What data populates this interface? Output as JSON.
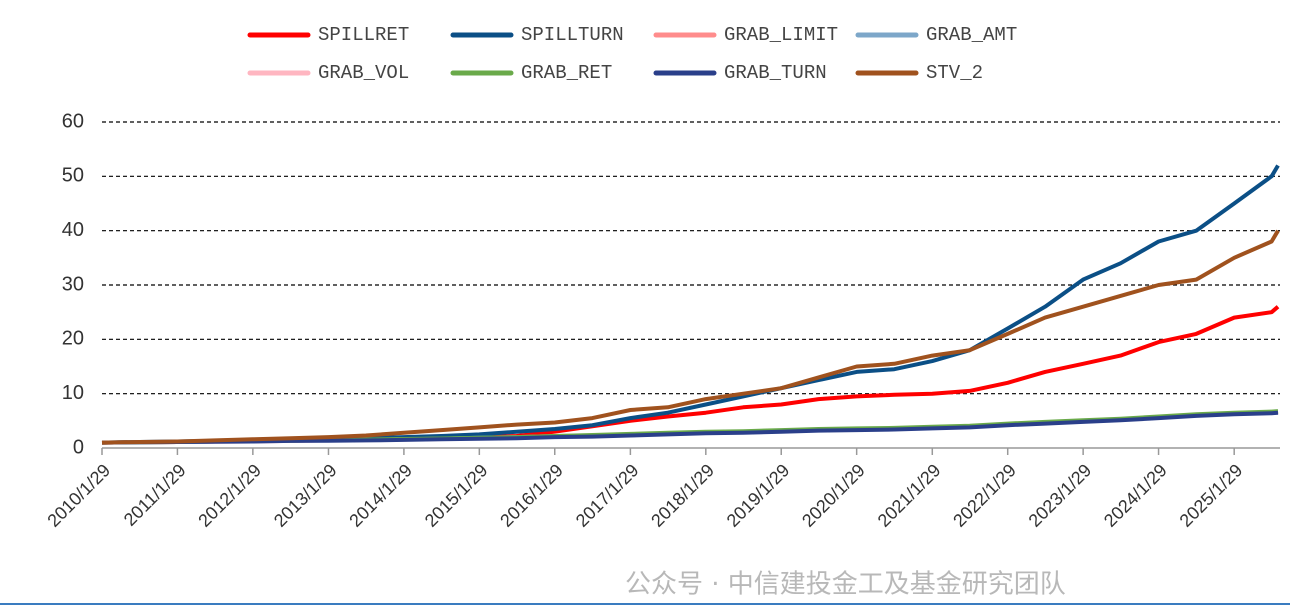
{
  "chart_data": {
    "type": "line",
    "watermark": "公众号 · 中信建投金工及基金研究团队",
    "x": [
      "2010/1/29",
      "2010/7/29",
      "2011/1/29",
      "2011/7/29",
      "2012/1/29",
      "2012/7/29",
      "2013/1/29",
      "2013/7/29",
      "2014/1/29",
      "2014/7/29",
      "2015/1/29",
      "2015/7/29",
      "2016/1/29",
      "2016/7/29",
      "2017/1/29",
      "2017/7/29",
      "2018/1/29",
      "2018/7/29",
      "2019/1/29",
      "2019/7/29",
      "2020/1/29",
      "2020/7/29",
      "2021/1/29",
      "2021/7/29",
      "2022/1/29",
      "2022/7/29",
      "2023/1/29",
      "2023/7/29",
      "2024/1/29",
      "2024/7/29",
      "2025/1/29",
      "2025/7/29",
      "2025/8/29"
    ],
    "xlim": [
      "2010/1/29",
      "2025/8/29"
    ],
    "xticks": [
      "2010/1/29",
      "2011/1/29",
      "2012/1/29",
      "2013/1/29",
      "2014/1/29",
      "2015/1/29",
      "2016/1/29",
      "2017/1/29",
      "2018/1/29",
      "2019/1/29",
      "2020/1/29",
      "2021/1/29",
      "2022/1/29",
      "2023/1/29",
      "2024/1/29",
      "2025/1/29"
    ],
    "ylim": [
      0,
      60
    ],
    "yticks": [
      0,
      10,
      20,
      30,
      40,
      50,
      60
    ],
    "grid": true,
    "series": [
      {
        "name": "SPILLRET",
        "color": "#ff0000",
        "values": [
          1,
          1.05,
          1.1,
          1.2,
          1.3,
          1.4,
          1.5,
          1.6,
          1.8,
          1.9,
          2.0,
          2.2,
          3,
          4,
          5,
          5.8,
          6.5,
          7.5,
          8,
          9,
          9.5,
          9.8,
          10,
          10.5,
          12,
          14,
          15.5,
          17,
          19.5,
          21,
          24,
          25,
          26
        ]
      },
      {
        "name": "SPILLTURN",
        "color": "#0b4f86",
        "values": [
          1,
          1.1,
          1.2,
          1.3,
          1.4,
          1.5,
          1.7,
          1.8,
          2.0,
          2.2,
          2.5,
          3.0,
          3.5,
          4.2,
          5.5,
          6.5,
          8,
          9.5,
          11,
          12.5,
          14,
          14.5,
          16,
          18,
          22,
          26,
          31,
          34,
          38,
          40,
          45,
          50,
          52
        ]
      },
      {
        "name": "GRAB_LIMIT",
        "color": "#ff8c8c",
        "values": [
          1,
          1.05,
          1.1,
          1.2,
          1.25,
          1.35,
          1.4,
          1.5,
          1.6,
          1.7,
          1.8,
          1.9,
          2.1,
          2.2,
          2.4,
          2.6,
          2.8,
          2.9,
          3.1,
          3.3,
          3.4,
          3.5,
          3.7,
          3.9,
          4.3,
          4.6,
          4.9,
          5.2,
          5.6,
          6.0,
          6.3,
          6.5,
          6.6
        ]
      },
      {
        "name": "GRAB_AMT",
        "color": "#7da7c9",
        "values": [
          1,
          1.05,
          1.1,
          1.2,
          1.25,
          1.35,
          1.45,
          1.5,
          1.6,
          1.7,
          1.9,
          2.0,
          2.2,
          2.3,
          2.5,
          2.7,
          2.9,
          3.0,
          3.2,
          3.4,
          3.5,
          3.6,
          3.8,
          4.0,
          4.4,
          4.7,
          5.0,
          5.3,
          5.7,
          6.1,
          6.4,
          6.6,
          6.7
        ]
      },
      {
        "name": "GRAB_VOL",
        "color": "#ffb6c1",
        "values": [
          1,
          1.05,
          1.1,
          1.15,
          1.2,
          1.3,
          1.4,
          1.45,
          1.55,
          1.65,
          1.8,
          1.9,
          2.1,
          2.2,
          2.4,
          2.6,
          2.8,
          2.9,
          3.1,
          3.3,
          3.4,
          3.5,
          3.7,
          3.9,
          4.3,
          4.6,
          4.9,
          5.2,
          5.6,
          6.0,
          6.3,
          6.5,
          6.6
        ]
      },
      {
        "name": "GRAB_RET",
        "color": "#6aaa4a",
        "values": [
          1,
          1.05,
          1.1,
          1.2,
          1.3,
          1.35,
          1.45,
          1.55,
          1.65,
          1.75,
          1.9,
          2.0,
          2.2,
          2.4,
          2.6,
          2.8,
          3.0,
          3.1,
          3.3,
          3.5,
          3.6,
          3.7,
          3.9,
          4.1,
          4.5,
          4.8,
          5.1,
          5.4,
          5.8,
          6.2,
          6.5,
          6.7,
          6.8
        ]
      },
      {
        "name": "GRAB_TURN",
        "color": "#2a3f8a",
        "values": [
          1,
          1.05,
          1.1,
          1.15,
          1.2,
          1.3,
          1.35,
          1.4,
          1.5,
          1.6,
          1.7,
          1.8,
          2.0,
          2.1,
          2.3,
          2.5,
          2.7,
          2.8,
          3.0,
          3.2,
          3.3,
          3.4,
          3.6,
          3.8,
          4.2,
          4.5,
          4.8,
          5.1,
          5.5,
          5.9,
          6.2,
          6.4,
          6.5
        ]
      },
      {
        "name": "STV_2",
        "color": "#a0521e",
        "values": [
          1,
          1.1,
          1.2,
          1.4,
          1.6,
          1.8,
          2.0,
          2.3,
          2.8,
          3.3,
          3.8,
          4.3,
          4.7,
          5.5,
          7,
          7.5,
          9,
          10,
          11,
          13,
          15,
          15.5,
          17,
          18,
          21,
          24,
          26,
          28,
          30,
          31,
          35,
          38,
          40
        ]
      }
    ]
  }
}
